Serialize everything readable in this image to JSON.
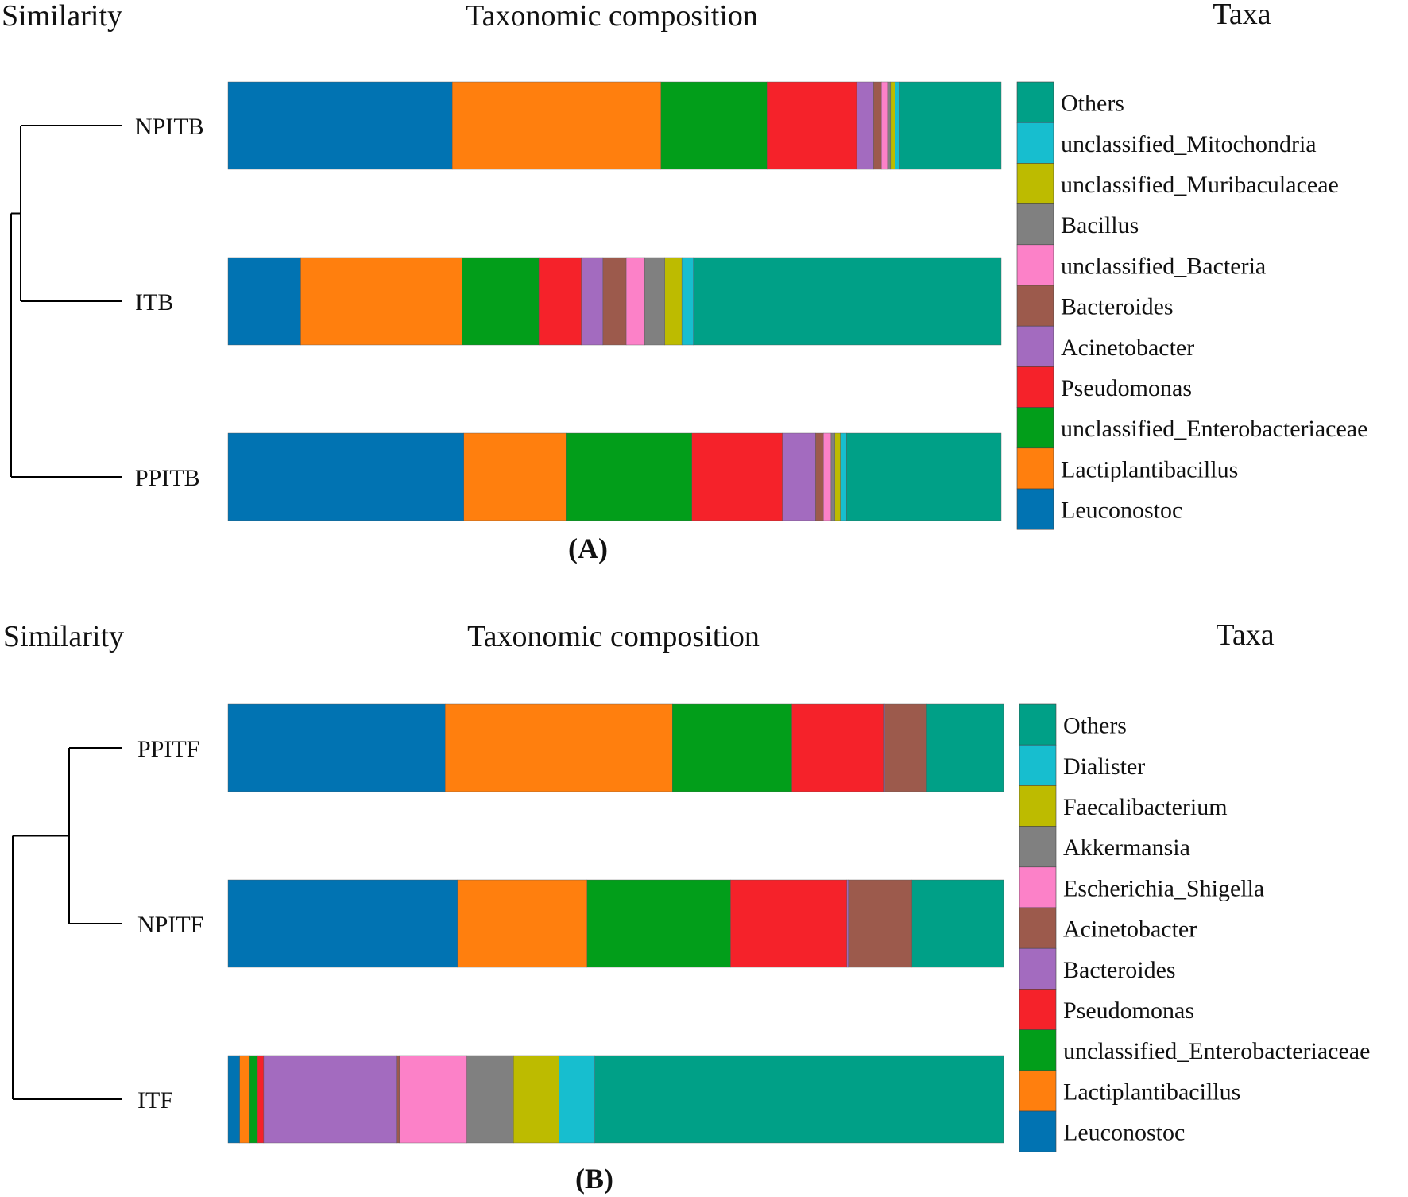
{
  "chart_data": [
    {
      "type": "bar",
      "orientation": "horizontal",
      "stacked": true,
      "normalized": true,
      "panel_label": "(A)",
      "headers": {
        "similarity": "Similarity",
        "composition": "Taxonomic composition",
        "taxa": "Taxa"
      },
      "samples": [
        "NPITB",
        "ITB",
        "PPITB"
      ],
      "dendrogram": "((NPITB,ITB),PPITB)",
      "series": [
        {
          "name": "Leuconostoc",
          "color": "#0173b2",
          "values": [
            29.0,
            9.4,
            30.5
          ]
        },
        {
          "name": "Lactiplantibacillus",
          "color": "#ff7f0e",
          "values": [
            27.0,
            20.9,
            13.2
          ]
        },
        {
          "name": "unclassified_Enterobacteriaceae",
          "color": "#029e1a",
          "values": [
            13.7,
            9.9,
            16.3
          ]
        },
        {
          "name": "Pseudomonas",
          "color": "#f5222a",
          "values": [
            11.6,
            5.5,
            11.7
          ]
        },
        {
          "name": "Acinetobacter",
          "color": "#a36bbf",
          "values": [
            2.2,
            2.8,
            4.3
          ]
        },
        {
          "name": "Bacteroides",
          "color": "#9c5a4c",
          "values": [
            1.0,
            3.0,
            1.0
          ]
        },
        {
          "name": "unclassified_Bacteria",
          "color": "#fc81c8",
          "values": [
            0.8,
            2.4,
            1.0
          ]
        },
        {
          "name": "Bacillus",
          "color": "#808080",
          "values": [
            0.4,
            2.6,
            0.5
          ]
        },
        {
          "name": "unclassified_Muribaculaceae",
          "color": "#bdbb00",
          "values": [
            0.6,
            2.2,
            0.7
          ]
        },
        {
          "name": "unclassified_Mitochondria",
          "color": "#17becf",
          "values": [
            0.6,
            1.5,
            0.8
          ]
        },
        {
          "name": "Others",
          "color": "#00a087",
          "values": [
            13.1,
            39.8,
            20.0
          ]
        }
      ]
    },
    {
      "type": "bar",
      "orientation": "horizontal",
      "stacked": true,
      "normalized": true,
      "panel_label": "(B)",
      "headers": {
        "similarity": "Similarity",
        "composition": "Taxonomic composition",
        "taxa": "Taxa"
      },
      "samples": [
        "PPITF",
        "NPITF",
        "ITF"
      ],
      "dendrogram": "((PPITF,NPITF),ITF)",
      "series": [
        {
          "name": "Leuconostoc",
          "color": "#0173b2",
          "values": [
            28.0,
            29.6,
            1.5
          ]
        },
        {
          "name": "Lactiplantibacillus",
          "color": "#ff7f0e",
          "values": [
            29.3,
            16.7,
            1.3
          ]
        },
        {
          "name": "unclassified_Enterobacteriaceae",
          "color": "#029e1a",
          "values": [
            15.4,
            18.5,
            1.0
          ]
        },
        {
          "name": "Pseudomonas",
          "color": "#f5222a",
          "values": [
            11.8,
            15.0,
            0.8
          ]
        },
        {
          "name": "Bacteroides",
          "color": "#a36bbf",
          "values": [
            0.2,
            0.2,
            17.2
          ]
        },
        {
          "name": "Acinetobacter",
          "color": "#9c5a4c",
          "values": [
            5.4,
            8.2,
            0.3
          ]
        },
        {
          "name": "Escherichia_Shigella",
          "color": "#fc81c8",
          "values": [
            0.0,
            0.0,
            8.7
          ]
        },
        {
          "name": "Akkermansia",
          "color": "#808080",
          "values": [
            0.0,
            0.0,
            6.0
          ]
        },
        {
          "name": "Faecalibacterium",
          "color": "#bdbb00",
          "values": [
            0.0,
            0.0,
            5.9
          ]
        },
        {
          "name": "Dialister",
          "color": "#17becf",
          "values": [
            0.0,
            0.0,
            4.6
          ]
        },
        {
          "name": "Others",
          "color": "#00a087",
          "values": [
            9.9,
            11.8,
            52.7
          ]
        }
      ]
    }
  ]
}
